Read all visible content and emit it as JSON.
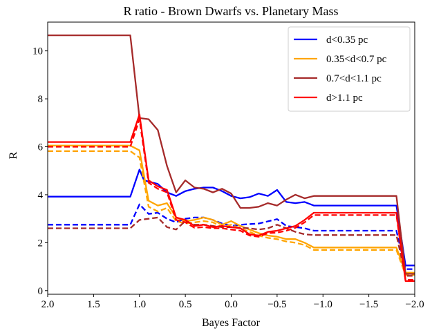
{
  "chart_data": {
    "type": "line",
    "title": "R ratio - Brown Dwarfs vs. Planetary Mass",
    "xlabel": "Bayes Factor",
    "ylabel": "R",
    "xlim": [
      2.0,
      -2.0
    ],
    "ylim": [
      -0.15,
      11.2
    ],
    "x_inverted": true,
    "x_ticks": [
      2.0,
      1.5,
      1.0,
      0.5,
      0.0,
      -0.5,
      -1.0,
      -1.5,
      -2.0
    ],
    "x_tick_labels": [
      "2.0",
      "1.5",
      "1.0",
      "0.5",
      "0.0",
      "−0.5",
      "−1.0",
      "−1.5",
      "−2.0"
    ],
    "y_ticks": [
      0,
      2,
      4,
      6,
      8,
      10
    ],
    "y_tick_labels": [
      "0",
      "2",
      "4",
      "6",
      "8",
      "10"
    ],
    "grid": false,
    "legend_placement": "top-right",
    "series": [
      {
        "name": "d<0.35 pc",
        "color": "#0000ff",
        "style": "solid",
        "points": [
          [
            2.0,
            3.92
          ],
          [
            1.1,
            3.92
          ],
          [
            1.0,
            5.05
          ],
          [
            0.95,
            4.6
          ],
          [
            0.85,
            4.5
          ],
          [
            0.8,
            4.45
          ],
          [
            0.7,
            4.1
          ],
          [
            0.6,
            3.95
          ],
          [
            0.5,
            4.15
          ],
          [
            0.4,
            4.25
          ],
          [
            0.3,
            4.3
          ],
          [
            0.2,
            4.3
          ],
          [
            0.1,
            4.15
          ],
          [
            0.0,
            3.95
          ],
          [
            -0.1,
            3.85
          ],
          [
            -0.2,
            3.9
          ],
          [
            -0.3,
            4.05
          ],
          [
            -0.4,
            3.95
          ],
          [
            -0.5,
            4.2
          ],
          [
            -0.6,
            3.7
          ],
          [
            -0.7,
            3.65
          ],
          [
            -0.8,
            3.7
          ],
          [
            -0.9,
            3.55
          ],
          [
            -1.8,
            3.55
          ],
          [
            -1.9,
            1.05
          ],
          [
            -2.0,
            1.05
          ]
        ]
      },
      {
        "name": "d<0.35 pc",
        "color": "#0000ff",
        "style": "dashed",
        "points": [
          [
            2.0,
            2.75
          ],
          [
            1.1,
            2.75
          ],
          [
            1.0,
            3.6
          ],
          [
            0.9,
            3.2
          ],
          [
            0.8,
            3.25
          ],
          [
            0.7,
            3.0
          ],
          [
            0.6,
            2.85
          ],
          [
            0.5,
            3.0
          ],
          [
            0.4,
            3.05
          ],
          [
            0.3,
            3.05
          ],
          [
            0.2,
            2.95
          ],
          [
            0.1,
            2.8
          ],
          [
            0.0,
            2.7
          ],
          [
            -0.1,
            2.75
          ],
          [
            -0.3,
            2.8
          ],
          [
            -0.5,
            2.98
          ],
          [
            -0.6,
            2.7
          ],
          [
            -0.8,
            2.6
          ],
          [
            -0.9,
            2.5
          ],
          [
            -1.8,
            2.5
          ],
          [
            -1.9,
            0.9
          ],
          [
            -2.0,
            0.9
          ]
        ]
      },
      {
        "name": "0.35<d<0.7 pc",
        "color": "#ffa500",
        "style": "solid",
        "points": [
          [
            2.0,
            6.05
          ],
          [
            1.1,
            6.05
          ],
          [
            1.0,
            5.85
          ],
          [
            0.9,
            3.75
          ],
          [
            0.8,
            3.55
          ],
          [
            0.7,
            3.65
          ],
          [
            0.6,
            3.05
          ],
          [
            0.5,
            2.9
          ],
          [
            0.4,
            2.95
          ],
          [
            0.3,
            3.05
          ],
          [
            0.2,
            2.95
          ],
          [
            0.1,
            2.75
          ],
          [
            0.0,
            2.9
          ],
          [
            -0.1,
            2.7
          ],
          [
            -0.2,
            2.55
          ],
          [
            -0.3,
            2.4
          ],
          [
            -0.4,
            2.3
          ],
          [
            -0.5,
            2.25
          ],
          [
            -0.6,
            2.15
          ],
          [
            -0.7,
            2.15
          ],
          [
            -0.8,
            2.0
          ],
          [
            -0.9,
            1.8
          ],
          [
            -1.8,
            1.8
          ],
          [
            -1.9,
            0.75
          ],
          [
            -2.0,
            0.75
          ]
        ]
      },
      {
        "name": "0.35<d<0.7 pc",
        "color": "#ffa500",
        "style": "dashed",
        "points": [
          [
            2.0,
            5.82
          ],
          [
            1.1,
            5.82
          ],
          [
            1.0,
            5.55
          ],
          [
            0.9,
            3.5
          ],
          [
            0.8,
            3.3
          ],
          [
            0.7,
            3.45
          ],
          [
            0.6,
            2.9
          ],
          [
            0.5,
            2.8
          ],
          [
            0.4,
            2.85
          ],
          [
            0.3,
            2.9
          ],
          [
            0.2,
            2.85
          ],
          [
            0.1,
            2.65
          ],
          [
            0.0,
            2.75
          ],
          [
            -0.1,
            2.6
          ],
          [
            -0.2,
            2.45
          ],
          [
            -0.3,
            2.3
          ],
          [
            -0.4,
            2.2
          ],
          [
            -0.5,
            2.15
          ],
          [
            -0.6,
            2.05
          ],
          [
            -0.7,
            2.0
          ],
          [
            -0.8,
            1.9
          ],
          [
            -0.9,
            1.7
          ],
          [
            -1.8,
            1.7
          ],
          [
            -1.9,
            0.65
          ],
          [
            -2.0,
            0.65
          ]
        ]
      },
      {
        "name": "0.7<d<1.1 pc",
        "color": "#a52a2a",
        "style": "solid",
        "points": [
          [
            2.0,
            10.65
          ],
          [
            1.1,
            10.65
          ],
          [
            1.0,
            7.2
          ],
          [
            0.9,
            7.15
          ],
          [
            0.8,
            6.7
          ],
          [
            0.7,
            5.2
          ],
          [
            0.6,
            4.1
          ],
          [
            0.5,
            4.6
          ],
          [
            0.4,
            4.3
          ],
          [
            0.3,
            4.25
          ],
          [
            0.2,
            4.1
          ],
          [
            0.1,
            4.25
          ],
          [
            0.0,
            4.05
          ],
          [
            -0.1,
            3.45
          ],
          [
            -0.2,
            3.45
          ],
          [
            -0.3,
            3.5
          ],
          [
            -0.4,
            3.65
          ],
          [
            -0.5,
            3.55
          ],
          [
            -0.6,
            3.8
          ],
          [
            -0.7,
            4.0
          ],
          [
            -0.8,
            3.85
          ],
          [
            -0.9,
            3.95
          ],
          [
            -1.8,
            3.95
          ],
          [
            -1.9,
            0.7
          ],
          [
            -2.0,
            0.7
          ]
        ]
      },
      {
        "name": "0.7<d<1.1 pc",
        "color": "#a52a2a",
        "style": "dashed",
        "points": [
          [
            2.0,
            2.6
          ],
          [
            1.1,
            2.6
          ],
          [
            1.0,
            2.95
          ],
          [
            0.9,
            3.0
          ],
          [
            0.8,
            3.05
          ],
          [
            0.7,
            2.65
          ],
          [
            0.6,
            2.55
          ],
          [
            0.5,
            2.9
          ],
          [
            0.4,
            2.75
          ],
          [
            0.3,
            2.75
          ],
          [
            0.2,
            2.7
          ],
          [
            0.1,
            2.65
          ],
          [
            0.0,
            2.65
          ],
          [
            -0.1,
            2.62
          ],
          [
            -0.2,
            2.6
          ],
          [
            -0.3,
            2.55
          ],
          [
            -0.4,
            2.6
          ],
          [
            -0.5,
            2.75
          ],
          [
            -0.6,
            2.6
          ],
          [
            -0.7,
            2.45
          ],
          [
            -0.8,
            2.35
          ],
          [
            -0.9,
            2.32
          ],
          [
            -1.8,
            2.32
          ],
          [
            -1.9,
            0.62
          ],
          [
            -2.0,
            0.62
          ]
        ]
      },
      {
        "name": "d>1.1 pc",
        "color": "#ff0000",
        "style": "solid",
        "points": [
          [
            2.0,
            6.2
          ],
          [
            1.1,
            6.2
          ],
          [
            1.0,
            7.35
          ],
          [
            0.9,
            4.6
          ],
          [
            0.8,
            4.35
          ],
          [
            0.7,
            4.2
          ],
          [
            0.6,
            3.05
          ],
          [
            0.5,
            2.95
          ],
          [
            0.4,
            2.7
          ],
          [
            0.3,
            2.75
          ],
          [
            0.2,
            2.65
          ],
          [
            0.1,
            2.7
          ],
          [
            0.0,
            2.65
          ],
          [
            -0.1,
            2.6
          ],
          [
            -0.2,
            2.35
          ],
          [
            -0.3,
            2.3
          ],
          [
            -0.4,
            2.45
          ],
          [
            -0.5,
            2.5
          ],
          [
            -0.6,
            2.6
          ],
          [
            -0.7,
            2.7
          ],
          [
            -0.8,
            2.95
          ],
          [
            -0.9,
            3.25
          ],
          [
            -1.8,
            3.25
          ],
          [
            -1.9,
            0.4
          ],
          [
            -2.0,
            0.4
          ]
        ]
      },
      {
        "name": "d>1.1 pc",
        "color": "#ff0000",
        "style": "dashed",
        "points": [
          [
            2.0,
            6.0
          ],
          [
            1.1,
            6.0
          ],
          [
            1.0,
            7.15
          ],
          [
            0.9,
            4.5
          ],
          [
            0.8,
            4.25
          ],
          [
            0.7,
            4.1
          ],
          [
            0.6,
            2.95
          ],
          [
            0.5,
            2.85
          ],
          [
            0.4,
            2.62
          ],
          [
            0.3,
            2.65
          ],
          [
            0.2,
            2.6
          ],
          [
            0.1,
            2.6
          ],
          [
            0.0,
            2.55
          ],
          [
            -0.1,
            2.5
          ],
          [
            -0.2,
            2.3
          ],
          [
            -0.3,
            2.25
          ],
          [
            -0.4,
            2.4
          ],
          [
            -0.5,
            2.42
          ],
          [
            -0.6,
            2.5
          ],
          [
            -0.7,
            2.62
          ],
          [
            -0.8,
            2.85
          ],
          [
            -0.9,
            3.15
          ],
          [
            -1.8,
            3.15
          ],
          [
            -1.9,
            0.45
          ],
          [
            -2.0,
            0.45
          ]
        ]
      }
    ],
    "legend": [
      {
        "label": "d<0.35 pc",
        "color": "#0000ff"
      },
      {
        "label": "0.35<d<0.7 pc",
        "color": "#ffa500"
      },
      {
        "label": "0.7<d<1.1 pc",
        "color": "#a52a2a"
      },
      {
        "label": "d>1.1 pc",
        "color": "#ff0000"
      }
    ]
  }
}
